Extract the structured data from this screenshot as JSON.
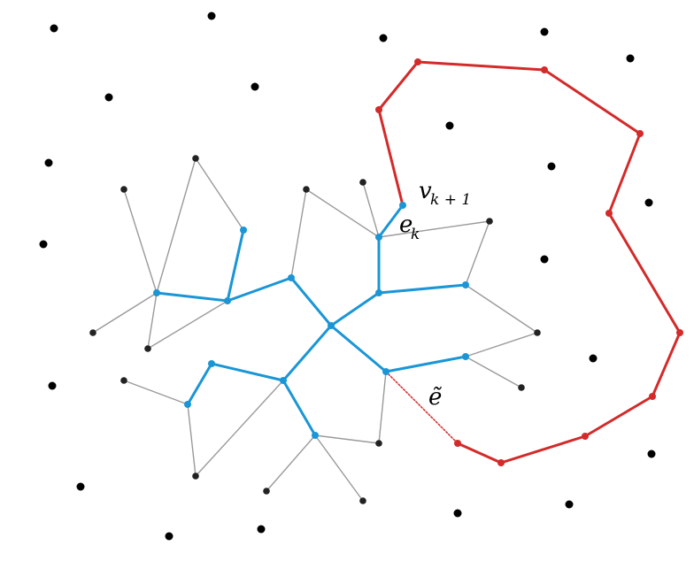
{
  "labels": {
    "vertex_label": "v",
    "vertex_subscript": "k + 1",
    "edge_label": "e",
    "edge_subscript": "k",
    "dotted_edge_label": "ẽ"
  },
  "colors": {
    "tree": "#1a96d6",
    "path": "#d42a2a",
    "gray_edges": "#9a9a9a",
    "points": "#000000",
    "dotted_edge": "#d42a2a"
  }
}
